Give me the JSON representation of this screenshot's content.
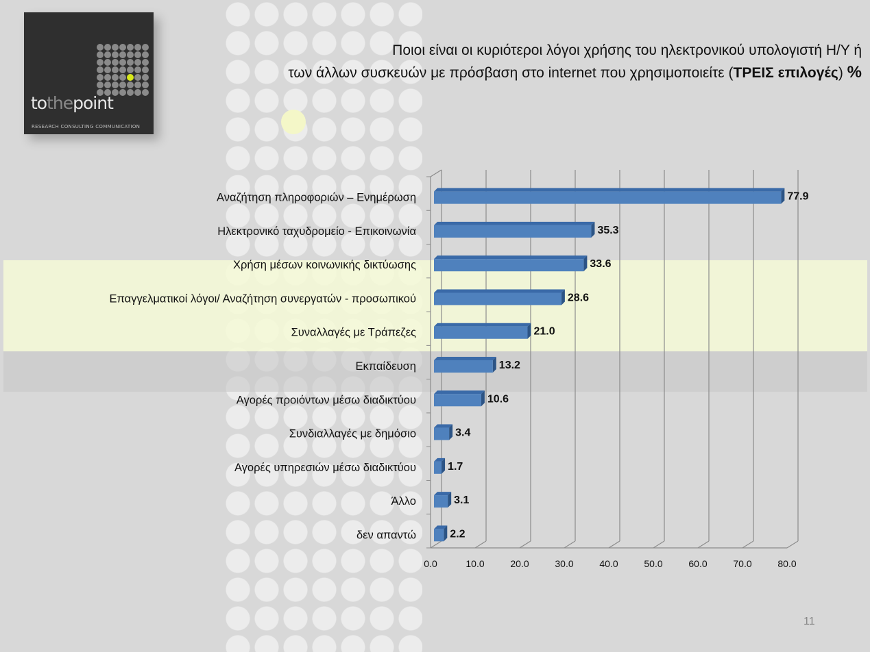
{
  "logo": {
    "text_to": "to",
    "text_the": "the",
    "text_point": "point",
    "tagline": "RESEARCH  CONSULTING  COMMUNICATION"
  },
  "title": {
    "line1": "Ποιοι είναι οι κυριότεροι λόγοι χρήσης του ηλεκτρονικού υπολογιστή Η/Υ ή",
    "line2_pre": "των άλλων συσκευών με πρόσβαση στο internet που χρησιμοποιείτε (",
    "line2_bold": "ΤΡΕΙΣ επιλογές",
    "line2_post": ") ",
    "percent": "%"
  },
  "page_number": "11",
  "colors": {
    "bar": "#4f81bd",
    "bar_top": "#3a6aa8",
    "bar_end": "#2c5485"
  },
  "chart_data": {
    "type": "bar",
    "orientation": "horizontal",
    "categories": [
      "Αναζήτηση πληροφοριών – Ενημέρωση",
      "Ηλεκτρονικό ταχυδρομείο - Επικοινωνία",
      "Χρήση μέσων κοινωνικής δικτύωσης",
      "Επαγγελματικοί λόγοι/ Αναζήτηση συνεργατών - προσωπικού",
      "Συναλλαγές με Τράπεζες",
      "Εκπαίδευση",
      "Αγορές προιόντων μέσω διαδικτύου",
      "Συνδιαλλαγές με δημόσιο",
      "Αγορές υπηρεσιών μέσω διαδικτύου",
      "Άλλο",
      "δεν απαντώ"
    ],
    "values": [
      77.9,
      35.3,
      33.6,
      28.6,
      21.0,
      13.2,
      10.6,
      3.4,
      1.7,
      3.1,
      2.2
    ],
    "xlim": [
      0,
      80
    ],
    "xticks": [
      "0.0",
      "10.0",
      "20.0",
      "30.0",
      "40.0",
      "50.0",
      "60.0",
      "70.0",
      "80.0"
    ],
    "grid": true,
    "title": "",
    "xlabel": "",
    "ylabel": ""
  }
}
